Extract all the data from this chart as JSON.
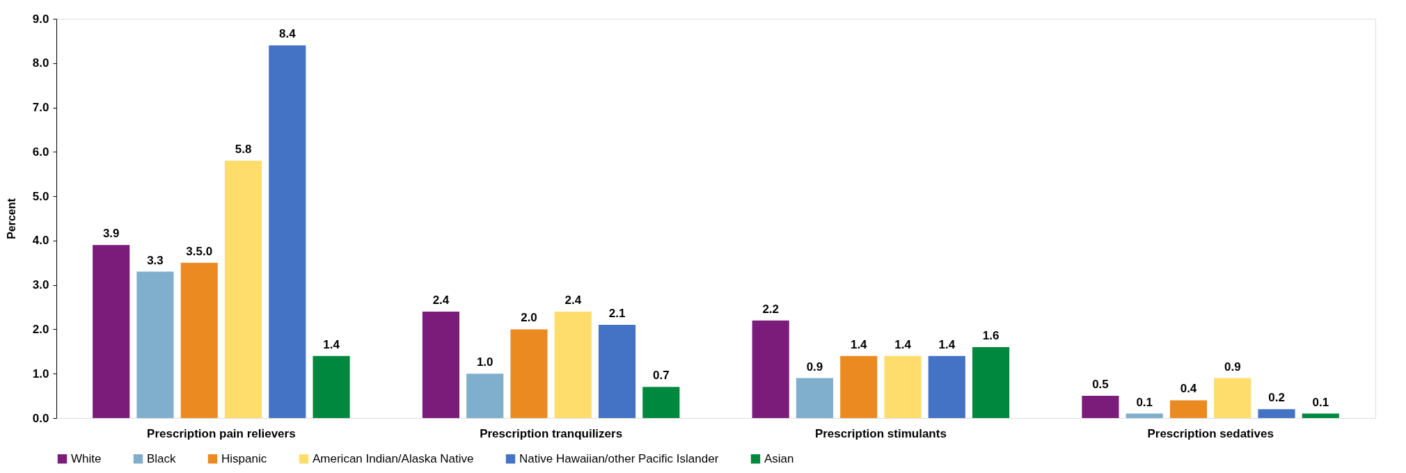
{
  "chart_data": {
    "type": "bar",
    "ylabel": "Percent",
    "categories": [
      "Prescription pain relievers",
      "Prescription tranquilizers",
      "Prescription stimulants",
      "Prescription sedatives"
    ],
    "series": [
      {
        "name": "White",
        "color": "#7b1c7a",
        "values": [
          3.9,
          2.4,
          2.2,
          0.5
        ],
        "value_labels": [
          "3.9",
          "2.4",
          "2.2",
          "0.5"
        ]
      },
      {
        "name": "Black",
        "color": "#7fafcd",
        "values": [
          3.3,
          1.0,
          0.9,
          0.1
        ],
        "value_labels": [
          "3.3",
          "1.0",
          "0.9",
          "0.1"
        ]
      },
      {
        "name": "Hispanic",
        "color": "#ec8a22",
        "values": [
          3.5,
          2.0,
          1.4,
          0.4
        ],
        "value_labels": [
          "3.5.0",
          "2.0",
          "1.4",
          "0.4"
        ]
      },
      {
        "name": "American Indian/Alaska Native",
        "color": "#ffdd6c",
        "values": [
          5.8,
          2.4,
          1.4,
          0.9
        ],
        "value_labels": [
          "5.8",
          "2.4",
          "1.4",
          "0.9"
        ]
      },
      {
        "name": "Native Hawaiian/other Pacific Islander",
        "color": "#4472c4",
        "values": [
          8.4,
          2.1,
          1.4,
          0.2
        ],
        "value_labels": [
          "8.4",
          "2.1",
          "1.4",
          "0.2"
        ]
      },
      {
        "name": "Asian",
        "color": "#00883f",
        "values": [
          1.4,
          0.7,
          1.6,
          0.1
        ],
        "value_labels": [
          "1.4",
          "0.7",
          "1.6",
          "0.1"
        ]
      }
    ],
    "ylim": [
      0,
      9
    ],
    "yticks": [
      {
        "value": 0,
        "label": "0.0"
      },
      {
        "value": 1,
        "label": "1.0"
      },
      {
        "value": 2,
        "label": "2.0"
      },
      {
        "value": 3,
        "label": "3.0"
      },
      {
        "value": 4,
        "label": "4.0"
      },
      {
        "value": 5,
        "label": "5.0"
      },
      {
        "value": 6,
        "label": "6.0"
      },
      {
        "value": 7,
        "label": "7.0"
      },
      {
        "value": 8,
        "label": "8.0"
      },
      {
        "value": 9,
        "label": "9.0"
      }
    ],
    "grid": false,
    "legend": "bottom"
  }
}
